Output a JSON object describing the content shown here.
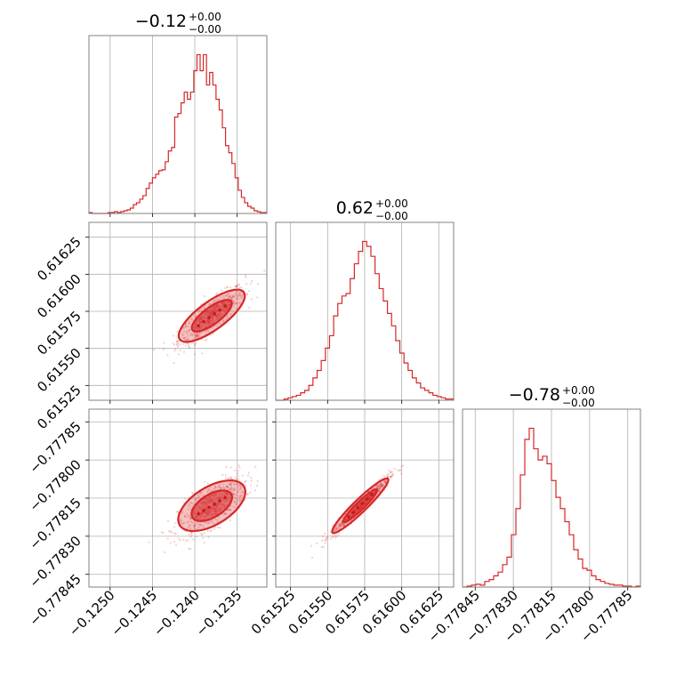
{
  "colors": {
    "accent": "#d62728",
    "grid": "#b0b0b0",
    "frame": "#808080"
  },
  "chart_data": {
    "type": "corner",
    "parameters": [
      {
        "title_main": "−0.12",
        "title_sup": "+0.00",
        "title_sub": "−0.00",
        "range": [
          -0.12525,
          -0.12315
        ],
        "ticks": [
          -0.125,
          -0.1245,
          -0.124,
          -0.1235
        ],
        "tick_labels": [
          "−0.1250",
          "−0.1245",
          "−0.1240",
          "−0.1235"
        ],
        "hist_values": [
          0.5,
          0,
          0,
          0,
          0,
          0,
          0.5,
          0.5,
          1,
          0.5,
          1,
          1.5,
          2,
          3,
          5,
          6,
          8,
          10,
          14,
          17,
          20,
          22,
          24,
          24.5,
          29,
          35,
          37,
          54,
          56,
          62,
          68,
          64,
          68,
          80,
          89,
          80,
          89,
          72,
          79,
          72,
          64,
          58,
          48,
          38,
          34,
          28,
          20,
          13,
          9,
          6,
          4,
          3,
          1.5,
          1,
          0.5,
          0.5
        ]
      },
      {
        "title_main": "0.62",
        "title_sup": "+0.00",
        "title_sub": "−0.00",
        "range": [
          0.61515,
          0.61635
        ],
        "ticks": [
          0.61525,
          0.6155,
          0.61575,
          0.616,
          0.61625
        ],
        "tick_labels": [
          "0.61525",
          "0.61550",
          "0.61575",
          "0.61600",
          "0.61625"
        ],
        "hist_values": [
          0,
          0,
          0.5,
          1,
          1.5,
          2,
          3,
          4,
          6,
          9,
          12,
          16,
          21,
          26,
          34,
          39,
          42,
          43,
          49,
          55,
          60,
          64,
          62,
          58,
          51,
          45,
          40,
          35,
          30,
          24,
          19,
          15,
          12,
          9,
          7,
          5,
          4,
          3,
          2,
          1.5,
          1,
          0.5,
          0.5
        ]
      },
      {
        "title_main": "−0.78",
        "title_sup": "+0.00",
        "title_sub": "−0.00",
        "range": [
          -0.7785,
          -0.7778
        ],
        "ticks": [
          -0.77845,
          -0.7783,
          -0.77815,
          -0.778,
          -0.77785
        ],
        "tick_labels": [
          "−0.77845",
          "−0.77830",
          "−0.77815",
          "−0.77800",
          "−0.77785"
        ],
        "hist_values": [
          0,
          0.5,
          1,
          1.5,
          1,
          3,
          4,
          6,
          8,
          12,
          16,
          28,
          42,
          60,
          79,
          85,
          74,
          68,
          70,
          66,
          57,
          48,
          42,
          35,
          28,
          20,
          15,
          10,
          9,
          6,
          4,
          3,
          2,
          1.5,
          1,
          1,
          0.5,
          0.5,
          0,
          0.5
        ]
      }
    ],
    "pairs": [
      {
        "x_param": 0,
        "y_param": 1,
        "center": [
          -0.1238,
          0.61572
        ],
        "corr": 0.85
      },
      {
        "x_param": 0,
        "y_param": 2,
        "center": [
          -0.1238,
          -0.77818
        ],
        "corr": 0.7
      },
      {
        "x_param": 1,
        "y_param": 2,
        "center": [
          0.61572,
          -0.77818
        ],
        "corr": 0.97
      }
    ],
    "grid": true
  }
}
